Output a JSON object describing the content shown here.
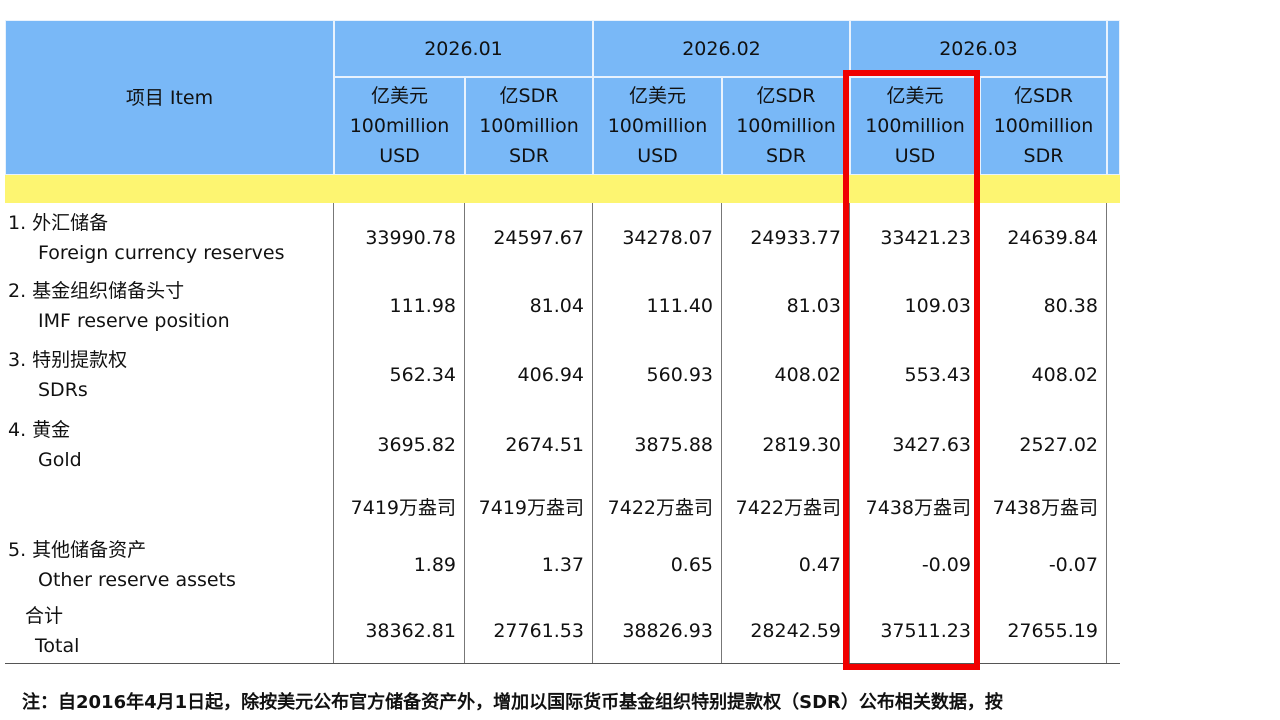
{
  "table": {
    "item_header": "项目 Item",
    "months": [
      "2026.01",
      "2026.02",
      "2026.03"
    ],
    "units": [
      [
        "亿美元",
        "100million",
        "USD"
      ],
      [
        "亿SDR",
        "100million",
        "SDR"
      ],
      [
        "亿美元",
        "100million",
        "USD"
      ],
      [
        "亿SDR",
        "100million",
        "SDR"
      ],
      [
        "亿美元",
        "100million",
        "USD"
      ],
      [
        "亿SDR",
        "100million",
        "SDR"
      ]
    ],
    "rows": [
      {
        "item": [
          "1. 外汇储备",
          "Foreign currency reserves"
        ],
        "values": [
          "33990.78",
          "24597.67",
          "34278.07",
          "24933.77",
          "33421.23",
          "24639.84"
        ]
      },
      {
        "item": [
          "2. 基金组织储备头寸",
          "IMF reserve position"
        ],
        "values": [
          "111.98",
          "81.04",
          "111.40",
          "81.03",
          "109.03",
          "80.38"
        ]
      },
      {
        "item": [
          "3. 特别提款权",
          "SDRs"
        ],
        "values": [
          "562.34",
          "406.94",
          "560.93",
          "408.02",
          "553.43",
          "408.02"
        ]
      },
      {
        "item": [
          "4. 黄金",
          "Gold"
        ],
        "values": [
          "3695.82",
          "2674.51",
          "3875.88",
          "2819.30",
          "3427.63",
          "2527.02"
        ]
      },
      {
        "item": [],
        "values": [
          "7419万盎司",
          "7419万盎司",
          "7422万盎司",
          "7422万盎司",
          "7438万盎司",
          "7438万盎司"
        ]
      },
      {
        "item": [
          "5. 其他储备资产",
          "Other reserve assets"
        ],
        "values": [
          "1.89",
          "1.37",
          "0.65",
          "0.47",
          "-0.09",
          "-0.07"
        ]
      },
      {
        "item": [
          "合计",
          "Total"
        ],
        "values": [
          "38362.81",
          "27761.53",
          "38826.93",
          "28242.59",
          "37511.23",
          "27655.19"
        ]
      }
    ]
  },
  "note": "注：自2016年4月1日起，除按美元公布官方储备资产外，增加以国际货币基金组织特别提款权（SDR）公布相关数据，按"
}
